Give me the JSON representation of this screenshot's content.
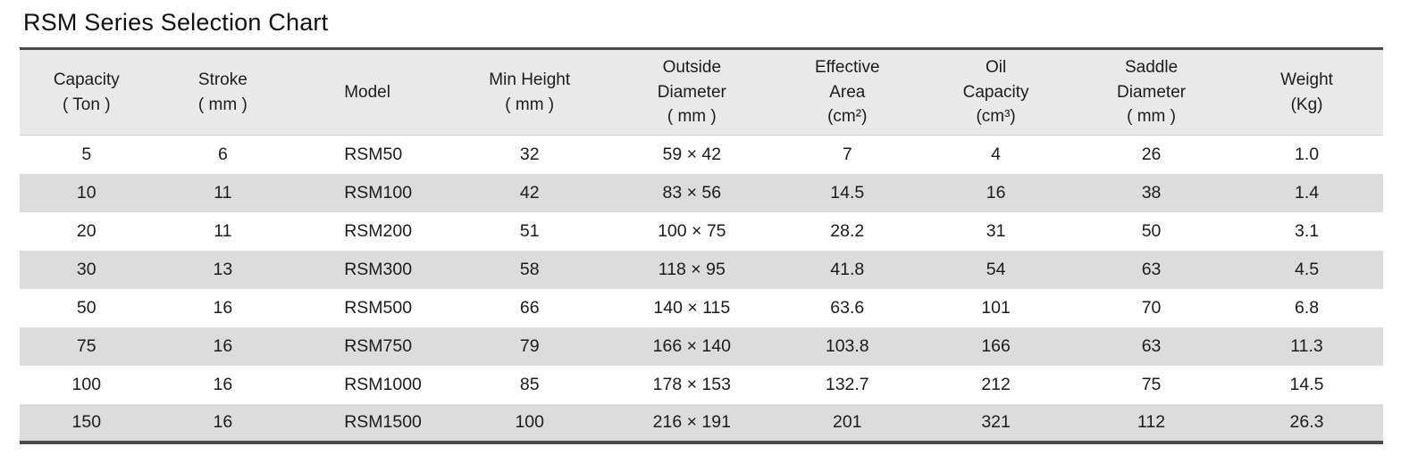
{
  "page": {
    "title": "RSM Series Selection Chart"
  },
  "colors": {
    "header_bg": "#e9e9e9",
    "stripe_bg": "#dcdcdc",
    "border_dark": "#4a4a4a",
    "text": "#1c1c1c"
  },
  "table": {
    "columns": [
      "Capacity\n( Ton )",
      "Stroke\n( mm )",
      "Model",
      "Min Height\n( mm )",
      "Outside\nDiameter\n( mm )",
      "Effective\nArea\n(cm²)",
      "Oil\nCapacity\n(cm³)",
      "Saddle\nDiameter\n( mm )",
      "Weight\n(Kg)"
    ],
    "rows": [
      [
        "5",
        "6",
        "RSM50",
        "32",
        "59 × 42",
        "7",
        "4",
        "26",
        "1.0"
      ],
      [
        "10",
        "11",
        "RSM100",
        "42",
        "83 × 56",
        "14.5",
        "16",
        "38",
        "1.4"
      ],
      [
        "20",
        "11",
        "RSM200",
        "51",
        "100 × 75",
        "28.2",
        "31",
        "50",
        "3.1"
      ],
      [
        "30",
        "13",
        "RSM300",
        "58",
        "118 × 95",
        "41.8",
        "54",
        "63",
        "4.5"
      ],
      [
        "50",
        "16",
        "RSM500",
        "66",
        "140 × 115",
        "63.6",
        "101",
        "70",
        "6.8"
      ],
      [
        "75",
        "16",
        "RSM750",
        "79",
        "166 × 140",
        "103.8",
        "166",
        "63",
        "11.3"
      ],
      [
        "100",
        "16",
        "RSM1000",
        "85",
        "178 × 153",
        "132.7",
        "212",
        "75",
        "14.5"
      ],
      [
        "150",
        "16",
        "RSM1500",
        "100",
        "216 × 191",
        "201",
        "321",
        "112",
        "26.3"
      ]
    ]
  }
}
